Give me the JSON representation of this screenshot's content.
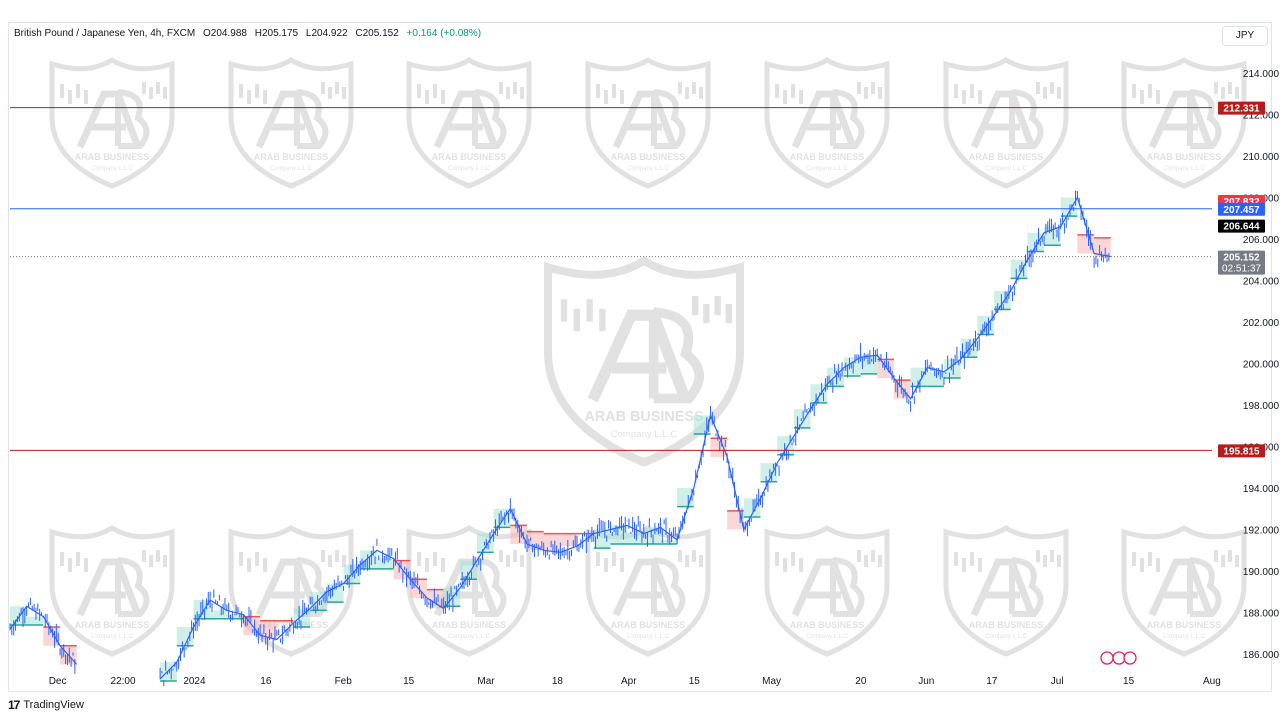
{
  "header": {
    "symbol": "British Pound / Japanese Yen, 4h, FXCM",
    "open": "O204.988",
    "high": "H205.175",
    "low": "L204.922",
    "close": "C205.152",
    "change": "+0.164 (+0.08%)"
  },
  "currency_button": "JPY",
  "footer": {
    "brand": "TradingView",
    "logo_glyph": "17"
  },
  "watermark": {
    "line1": "ARAB BUSINESS",
    "line2": "Company L.L.C"
  },
  "colors": {
    "up": "#26a69a",
    "down": "#ef5350",
    "candle": "#2962ff",
    "red_line": "#b71c1c",
    "blue_line": "#2962ff",
    "zone_red": "#f7b4b4",
    "zone_green": "#a6e3d6"
  },
  "chart_data": {
    "type": "line",
    "title": "British Pound / Japanese Yen, 4h, FXCM",
    "xlabel": "",
    "ylabel": "",
    "ylim": [
      185,
      216
    ],
    "y_ticks": [
      186,
      188,
      190,
      192,
      194,
      196,
      198,
      200,
      202,
      204,
      206,
      208,
      210,
      212,
      214
    ],
    "y_tick_labels": [
      "186.000",
      "188.000",
      "190.000",
      "192.000",
      "194.000",
      "196.000",
      "198.000",
      "200.000",
      "202.000",
      "204.000",
      "206.000",
      "208.000",
      "210.000",
      "212.000",
      "214.000"
    ],
    "x_tick_labels": [
      "Dec",
      "22:00",
      "2024",
      "16",
      "Feb",
      "15",
      "Mar",
      "18",
      "Apr",
      "15",
      "May",
      "20",
      "Jun",
      "17",
      "Jul",
      "15",
      "Aug"
    ],
    "x_tick_t": [
      0.04,
      0.095,
      0.155,
      0.215,
      0.28,
      0.335,
      0.4,
      0.46,
      0.52,
      0.575,
      0.64,
      0.715,
      0.77,
      0.825,
      0.88,
      0.94,
      1.01
    ],
    "series": [
      {
        "values": [
          187.2,
          188.3,
          187.8,
          186.4,
          185.5,
          null,
          null,
          null,
          null,
          184.8,
          185.6,
          187.3,
          188.6,
          188.1,
          187.9,
          186.9,
          186.7,
          187.5,
          188.2,
          189.0,
          189.4,
          190.3,
          191.0,
          190.6,
          189.6,
          188.7,
          188.2,
          189.2,
          190.5,
          191.8,
          193.0,
          191.3,
          191.0,
          190.9,
          191.2,
          191.8,
          192.0,
          192.2,
          191.8,
          192.1,
          191.5,
          194.0,
          197.5,
          195.5,
          192.0,
          193.5,
          195.2,
          196.5,
          197.8,
          199.0,
          199.8,
          200.3,
          200.4,
          199.3,
          198.3,
          199.8,
          199.6,
          200.2,
          201.2,
          202.3,
          203.5,
          205.0,
          206.3,
          206.6,
          208.0,
          205.3,
          205.152
        ]
      }
    ],
    "horizontal_levels": [
      {
        "value": 212.331,
        "label": "212.331",
        "color": "#b71c1c"
      },
      {
        "value": 207.457,
        "label": "207.457",
        "color": "#2962ff"
      },
      {
        "value": 195.815,
        "label": "195.815",
        "color": "#b71c1c"
      }
    ],
    "price_labels": [
      {
        "value": 207.832,
        "label": "207.832",
        "color": "#f23645"
      },
      {
        "value": 207.457,
        "label": "207.457",
        "color": "#2962ff"
      },
      {
        "value": 206.644,
        "label": "206.644",
        "color": "#000000"
      },
      {
        "value": 205.152,
        "label": "205.152",
        "sub": "02:51:37",
        "color": "#787b86"
      }
    ],
    "current_price": 205.152,
    "grid": false,
    "scale": "linear"
  }
}
